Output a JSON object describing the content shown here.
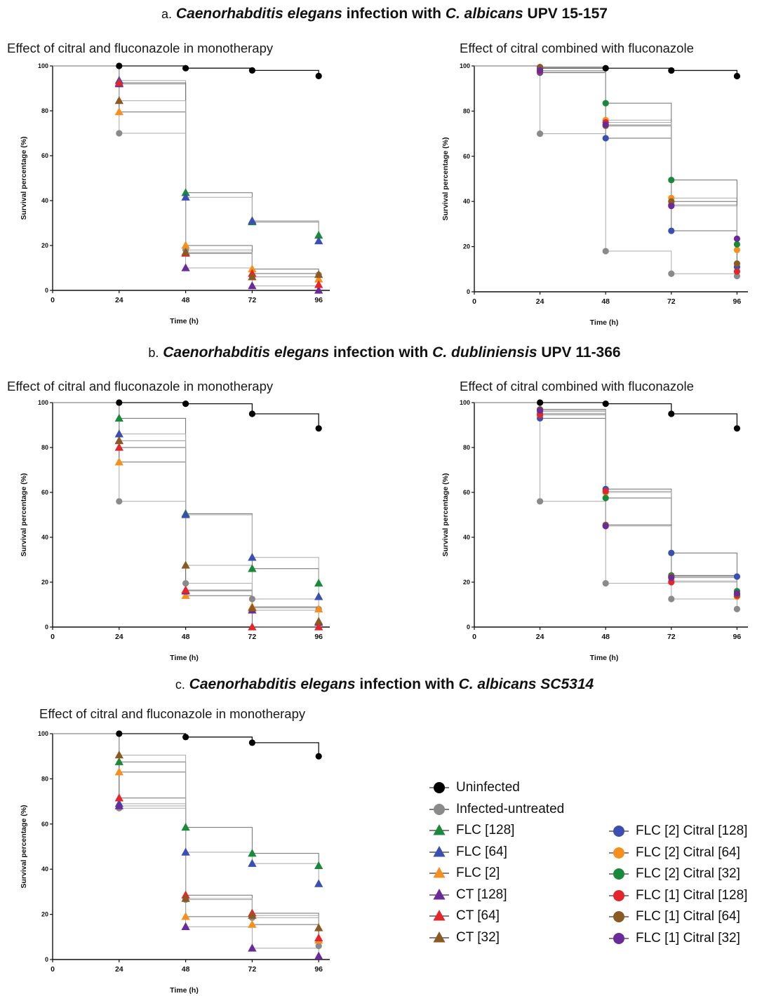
{
  "sections": [
    {
      "letter": "a.",
      "title_pre": "Caenorhabditis elegans",
      "title_mid": " infection with ",
      "title_species": "C. albicans",
      "title_post": " UPV 15-157"
    },
    {
      "letter": "b.",
      "title_pre": "Caenorhabditis elegans",
      "title_mid": " infection with ",
      "title_species": "C. dubliniensis",
      "title_post": " UPV 11-366"
    },
    {
      "letter": "c.",
      "title_pre": "Caenorhabditis elegans",
      "title_mid": " infection with ",
      "title_species": "C. albicans SC5314",
      "title_post": ""
    }
  ],
  "subtitles": {
    "mono": "Effect of citral and fluconazole in monotherapy",
    "combo": "Effect of citral combined with fluconazole"
  },
  "axis": {
    "xlabel": "Time (h)",
    "ylabel": "Survival percentage (%)"
  },
  "legend": {
    "col1": [
      {
        "label": "Uninfected",
        "color": "#000000",
        "marker": "circle"
      },
      {
        "label": "Infected-untreated",
        "color": "#8a8a8a",
        "marker": "circle"
      },
      {
        "label": "FLC [128]",
        "color": "#1a8a3a",
        "marker": "triangle"
      },
      {
        "label": "FLC [64]",
        "color": "#3a4fb0",
        "marker": "triangle"
      },
      {
        "label": "FLC [2]",
        "color": "#f5901e",
        "marker": "triangle"
      },
      {
        "label": "CT [128]",
        "color": "#6b2a99",
        "marker": "triangle"
      },
      {
        "label": "CT [64]",
        "color": "#e3262b",
        "marker": "triangle"
      },
      {
        "label": "CT [32]",
        "color": "#8b5a22",
        "marker": "triangle"
      }
    ],
    "col2": [
      {
        "label": "FLC [2] Citral [128]",
        "color": "#3a4fb0",
        "marker": "circle"
      },
      {
        "label": "FLC [2] Citral [64]",
        "color": "#f5901e",
        "marker": "circle"
      },
      {
        "label": "FLC [2] Citral [32]",
        "color": "#1a8a3a",
        "marker": "circle"
      },
      {
        "label": "FLC [1] Citral [128]",
        "color": "#e3262b",
        "marker": "circle"
      },
      {
        "label": "FLC [1] Citral [64]",
        "color": "#8b5a22",
        "marker": "circle"
      },
      {
        "label": "FLC [1] Citral [32]",
        "color": "#6b2a99",
        "marker": "circle"
      }
    ]
  },
  "chart_data": [
    {
      "type": "line",
      "panel": "a-mono",
      "title": "Effect of citral and fluconazole in monotherapy",
      "xlabel": "Time (h)",
      "ylabel": "Survival percentage (%)",
      "x": [
        0,
        24,
        48,
        72,
        96
      ],
      "xlim": [
        0,
        100
      ],
      "ylim": [
        0,
        100
      ],
      "yticks": [
        0,
        20,
        40,
        60,
        80,
        100
      ],
      "xticks": [
        0,
        24,
        48,
        72,
        96
      ],
      "series": [
        {
          "name": "Uninfected",
          "color": "#000000",
          "marker": "circle",
          "values": [
            100,
            100,
            99,
            98,
            95.5
          ]
        },
        {
          "name": "Infected-untreated",
          "color": "#8a8a8a",
          "marker": "circle",
          "values": [
            100,
            70,
            18,
            6,
            7
          ]
        },
        {
          "name": "FLC [128]",
          "color": "#1a8a3a",
          "marker": "triangle",
          "values": [
            100,
            92,
            43.5,
            30.5,
            24.5
          ]
        },
        {
          "name": "FLC [64]",
          "color": "#3a4fb0",
          "marker": "triangle",
          "values": [
            100,
            93.5,
            41.5,
            31,
            22
          ]
        },
        {
          "name": "FLC [2]",
          "color": "#f5901e",
          "marker": "triangle",
          "values": [
            100,
            79.5,
            20,
            9.5,
            5
          ]
        },
        {
          "name": "CT [128]",
          "color": "#6b2a99",
          "marker": "triangle",
          "values": [
            100,
            92,
            10,
            2,
            0
          ]
        },
        {
          "name": "CT [64]",
          "color": "#e3262b",
          "marker": "triangle",
          "values": [
            100,
            92.5,
            16.5,
            7.5,
            2.5
          ]
        },
        {
          "name": "CT [32]",
          "color": "#8b5a22",
          "marker": "triangle",
          "values": [
            100,
            84.5,
            17,
            6,
            7
          ]
        }
      ]
    },
    {
      "type": "line",
      "panel": "a-combo",
      "title": "Effect of citral combined with fluconazole",
      "xlabel": "Time (h)",
      "ylabel": "Survival percentage (%)",
      "x": [
        0,
        24,
        48,
        72,
        96
      ],
      "xlim": [
        0,
        100
      ],
      "ylim": [
        0,
        100
      ],
      "yticks": [
        0,
        20,
        40,
        60,
        80,
        100
      ],
      "xticks": [
        0,
        24,
        48,
        72,
        96
      ],
      "series": [
        {
          "name": "Uninfected",
          "color": "#000000",
          "marker": "circle",
          "values": [
            100,
            99,
            99,
            98,
            95.5
          ]
        },
        {
          "name": "Infected-untreated",
          "color": "#8a8a8a",
          "marker": "circle",
          "values": [
            100,
            70,
            18,
            8,
            7
          ]
        },
        {
          "name": "FLC [2] Citral [128]",
          "color": "#3a4fb0",
          "marker": "circle",
          "values": [
            100,
            97,
            68,
            27,
            11
          ]
        },
        {
          "name": "FLC [2] Citral [64]",
          "color": "#f5901e",
          "marker": "circle",
          "values": [
            100,
            98,
            76,
            41.5,
            18.5
          ]
        },
        {
          "name": "FLC [2] Citral [32]",
          "color": "#1a8a3a",
          "marker": "circle",
          "values": [
            100,
            99,
            83.5,
            49.5,
            21
          ]
        },
        {
          "name": "FLC [1] Citral [128]",
          "color": "#e3262b",
          "marker": "circle",
          "values": [
            100,
            97.5,
            75,
            38.5,
            9
          ]
        },
        {
          "name": "FLC [1] Citral [64]",
          "color": "#8b5a22",
          "marker": "circle",
          "values": [
            100,
            99.5,
            73.5,
            40,
            12.5
          ]
        },
        {
          "name": "FLC [1] Citral [32]",
          "color": "#6b2a99",
          "marker": "circle",
          "values": [
            100,
            98,
            74,
            38,
            23.5
          ]
        }
      ]
    },
    {
      "type": "line",
      "panel": "b-mono",
      "title": "Effect of citral and fluconazole in monotherapy",
      "xlabel": "Time (h)",
      "ylabel": "Survival percentage (%)",
      "x": [
        0,
        24,
        48,
        72,
        96
      ],
      "xlim": [
        0,
        100
      ],
      "ylim": [
        0,
        100
      ],
      "yticks": [
        0,
        20,
        40,
        60,
        80,
        100
      ],
      "xticks": [
        0,
        24,
        48,
        72,
        96
      ],
      "series": [
        {
          "name": "Uninfected",
          "color": "#000000",
          "marker": "circle",
          "values": [
            100,
            100,
            99.5,
            95,
            88.5
          ]
        },
        {
          "name": "Infected-untreated",
          "color": "#8a8a8a",
          "marker": "circle",
          "values": [
            100,
            56,
            19.5,
            12.5,
            8
          ]
        },
        {
          "name": "FLC [128]",
          "color": "#1a8a3a",
          "marker": "triangle",
          "values": [
            100,
            93,
            50.5,
            26,
            19.5
          ]
        },
        {
          "name": "FLC [64]",
          "color": "#3a4fb0",
          "marker": "triangle",
          "values": [
            100,
            86,
            50,
            31,
            13.5
          ]
        },
        {
          "name": "FLC [2]",
          "color": "#f5901e",
          "marker": "triangle",
          "values": [
            100,
            73.5,
            14,
            9,
            8
          ]
        },
        {
          "name": "CT [128]",
          "color": "#6b2a99",
          "marker": "triangle",
          "values": [
            100,
            83,
            16,
            7.5,
            2
          ]
        },
        {
          "name": "CT [64]",
          "color": "#e3262b",
          "marker": "triangle",
          "values": [
            100,
            80,
            16.5,
            0,
            0
          ]
        },
        {
          "name": "CT [32]",
          "color": "#8b5a22",
          "marker": "triangle",
          "values": [
            100,
            83,
            27.5,
            8.5,
            2.5
          ]
        }
      ]
    },
    {
      "type": "line",
      "panel": "b-combo",
      "title": "Effect of citral combined with fluconazole",
      "xlabel": "Time (h)",
      "ylabel": "Survival percentage (%)",
      "x": [
        0,
        24,
        48,
        72,
        96
      ],
      "xlim": [
        0,
        100
      ],
      "ylim": [
        0,
        100
      ],
      "yticks": [
        0,
        20,
        40,
        60,
        80,
        100
      ],
      "xticks": [
        0,
        24,
        48,
        72,
        96
      ],
      "series": [
        {
          "name": "Uninfected",
          "color": "#000000",
          "marker": "circle",
          "values": [
            100,
            100,
            99.5,
            95,
            88.5
          ]
        },
        {
          "name": "Infected-untreated",
          "color": "#8a8a8a",
          "marker": "circle",
          "values": [
            100,
            56,
            19.5,
            12.5,
            8
          ]
        },
        {
          "name": "FLC [2] Citral [128]",
          "color": "#3a4fb0",
          "marker": "circle",
          "values": [
            100,
            93,
            61.5,
            33,
            22.5
          ]
        },
        {
          "name": "FLC [2] Citral [64]",
          "color": "#f5901e",
          "marker": "circle",
          "values": [
            100,
            96,
            60,
            20.5,
            13.5
          ]
        },
        {
          "name": "FLC [2] Citral [32]",
          "color": "#1a8a3a",
          "marker": "circle",
          "values": [
            100,
            95,
            57.5,
            23,
            16
          ]
        },
        {
          "name": "FLC [1] Citral [128]",
          "color": "#e3262b",
          "marker": "circle",
          "values": [
            100,
            94.5,
            60.5,
            20,
            14
          ]
        },
        {
          "name": "FLC [1] Citral [64]",
          "color": "#8b5a22",
          "marker": "circle",
          "values": [
            100,
            97,
            45.5,
            22.5,
            14.5
          ]
        },
        {
          "name": "FLC [1] Citral [32]",
          "color": "#6b2a99",
          "marker": "circle",
          "values": [
            100,
            96.5,
            45,
            22,
            15
          ]
        }
      ]
    },
    {
      "type": "line",
      "panel": "c-mono",
      "title": "Effect of citral and fluconazole in monotherapy",
      "xlabel": "Time (h)",
      "ylabel": "Survival percentage (%)",
      "x": [
        0,
        24,
        48,
        72,
        96
      ],
      "xlim": [
        0,
        100
      ],
      "ylim": [
        0,
        100
      ],
      "yticks": [
        0,
        20,
        40,
        60,
        80,
        100
      ],
      "xticks": [
        0,
        24,
        48,
        72,
        96
      ],
      "series": [
        {
          "name": "Uninfected",
          "color": "#000000",
          "marker": "circle",
          "values": [
            100,
            100,
            98.5,
            96,
            90
          ]
        },
        {
          "name": "Infected-untreated",
          "color": "#8a8a8a",
          "marker": "circle",
          "values": [
            100,
            67,
            26.5,
            18.5,
            6
          ]
        },
        {
          "name": "FLC [128]",
          "color": "#1a8a3a",
          "marker": "triangle",
          "values": [
            100,
            87.5,
            58.5,
            47,
            41.5
          ]
        },
        {
          "name": "FLC [64]",
          "color": "#3a4fb0",
          "marker": "triangle",
          "values": [
            100,
            69,
            47.5,
            42.5,
            33.5
          ]
        },
        {
          "name": "FLC [2]",
          "color": "#f5901e",
          "marker": "triangle",
          "values": [
            100,
            83,
            19,
            15.5,
            8.5
          ]
        },
        {
          "name": "CT [128]",
          "color": "#6b2a99",
          "marker": "triangle",
          "values": [
            100,
            68,
            14.5,
            5,
            1.5
          ]
        },
        {
          "name": "CT [64]",
          "color": "#e3262b",
          "marker": "triangle",
          "values": [
            100,
            71.5,
            28.5,
            20.5,
            9.5
          ]
        },
        {
          "name": "CT [32]",
          "color": "#8b5a22",
          "marker": "triangle",
          "values": [
            100,
            90.5,
            27,
            19.5,
            14
          ]
        }
      ]
    }
  ]
}
